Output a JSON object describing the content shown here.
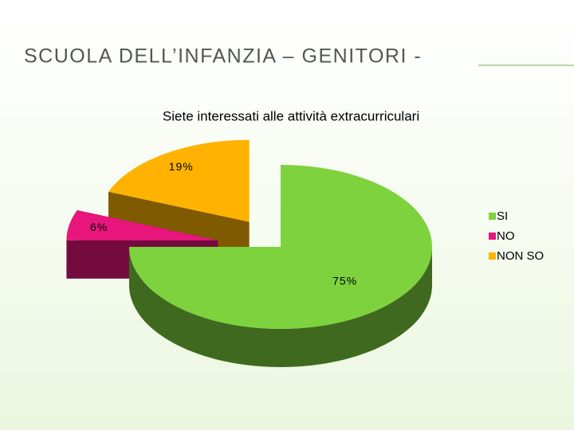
{
  "heading": "SCUOLA DELL’INFANZIA – GENITORI -",
  "chart_data": {
    "type": "pie",
    "title": "Siete interessati alle attività extracurriculari",
    "categories": [
      "SI",
      "NO",
      "NON SO"
    ],
    "values": [
      75,
      6,
      19
    ],
    "value_labels": [
      "75%",
      "6%",
      "19%"
    ],
    "colors": [
      "#7ed23d",
      "#e8167c",
      "#ffb300"
    ],
    "legend": "right"
  }
}
